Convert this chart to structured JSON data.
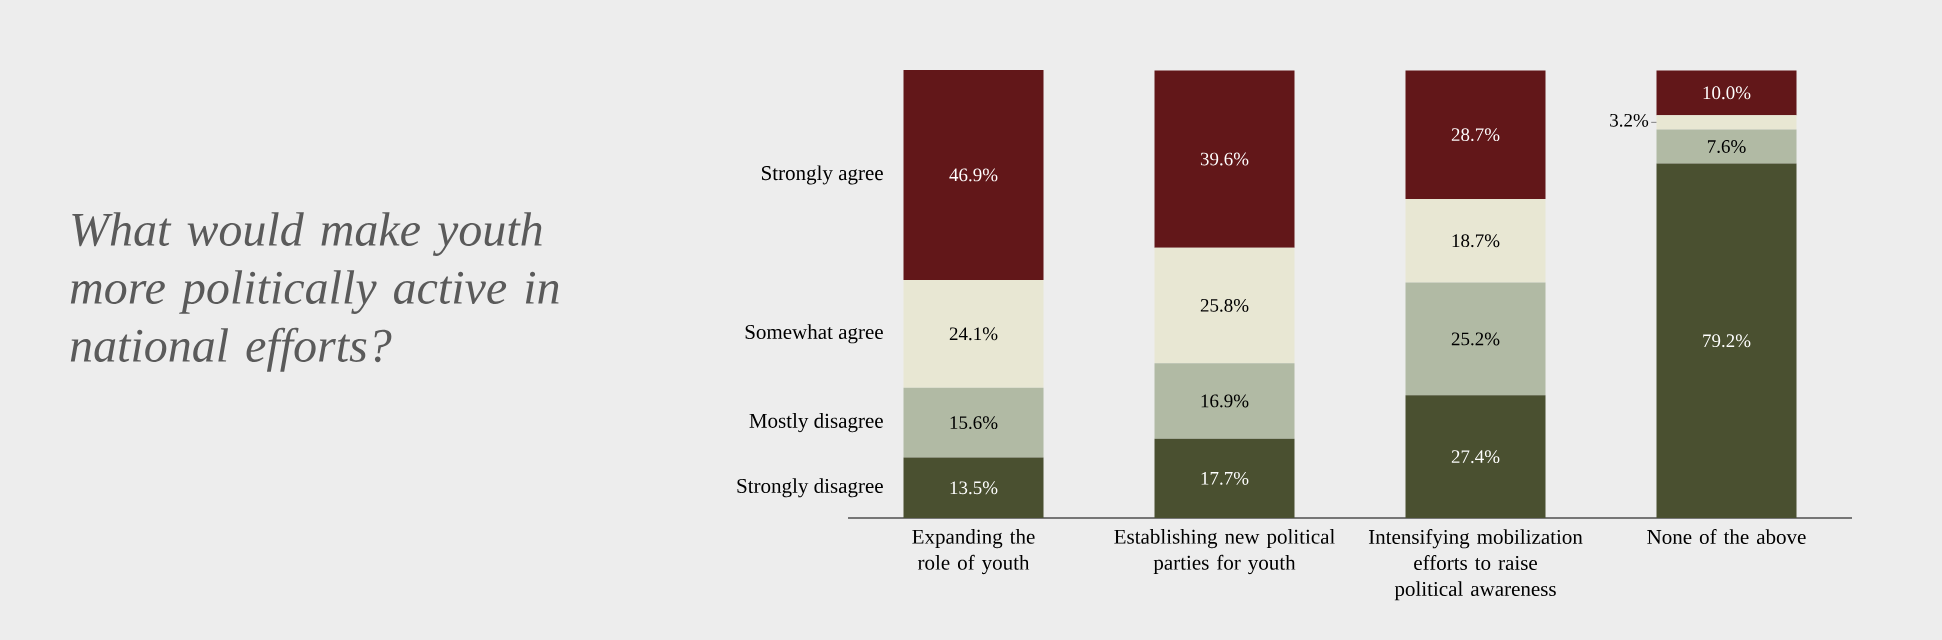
{
  "chart_data": {
    "type": "bar",
    "stacked": true,
    "title": "What would make youth more politically active in national efforts?",
    "categories": [
      "Expanding the role of youth",
      "Establishing new political parties for youth",
      "Intensifying mobilization efforts to raise political awareness",
      "None of the above"
    ],
    "legend": "left",
    "series": [
      {
        "name": "Strongly disagree",
        "color": "#4a5030",
        "values": [
          13.5,
          17.7,
          27.4,
          79.2
        ],
        "value_labels": [
          "13.5%",
          "17.7%",
          "27.4%",
          "79.2%"
        ]
      },
      {
        "name": "Mostly disagree",
        "color": "#b1baa4",
        "values": [
          15.6,
          16.9,
          25.2,
          7.6
        ],
        "value_labels": [
          "15.6%",
          "16.9%",
          "25.2%",
          "7.6%"
        ]
      },
      {
        "name": "Somewhat agree",
        "color": "#e8e7d3",
        "values": [
          24.1,
          25.8,
          18.7,
          3.2
        ],
        "value_labels": [
          "24.1%",
          "25.8%",
          "18.7%",
          "3.2%"
        ]
      },
      {
        "name": "Strongly agree",
        "color": "#621719",
        "values": [
          46.9,
          39.6,
          28.7,
          10.0
        ],
        "value_labels": [
          "46.9%",
          "39.6%",
          "28.7%",
          "10.0%"
        ]
      }
    ]
  }
}
